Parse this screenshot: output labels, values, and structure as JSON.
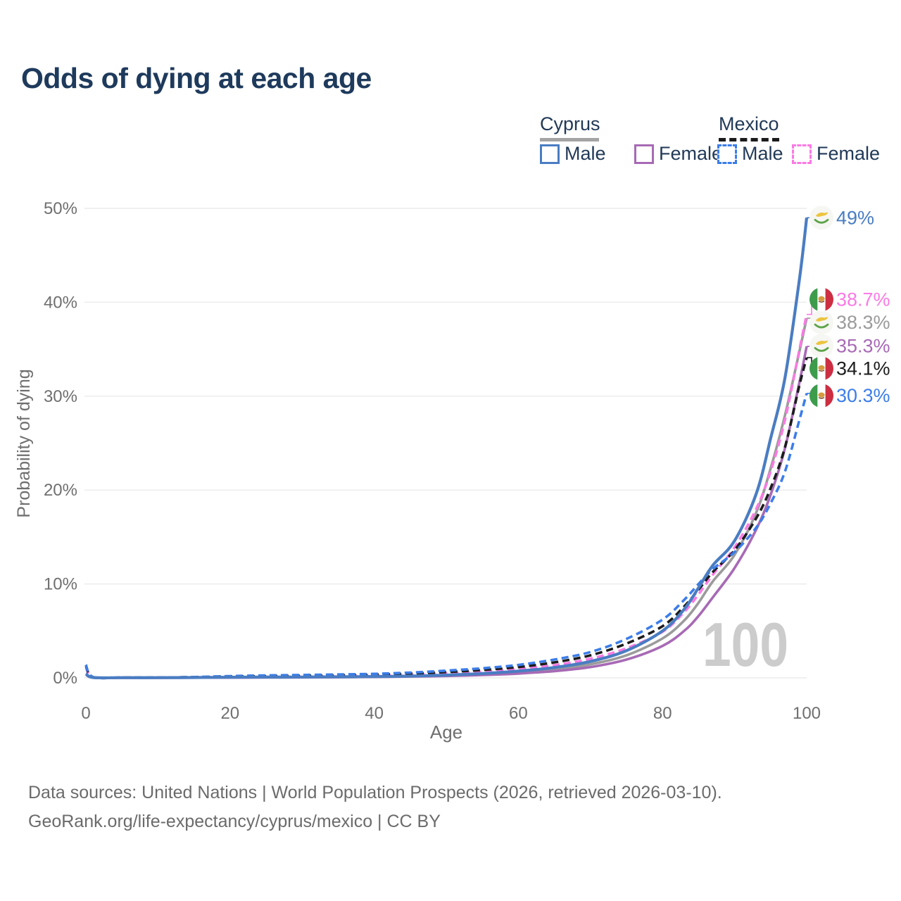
{
  "page": {
    "title": "Odds of dying at each age",
    "background": "#ffffff",
    "title_color": "#1e3a5c"
  },
  "legend": {
    "groups": [
      {
        "id": "cyprus",
        "label": "Cyprus",
        "line_style": "solid",
        "line_color": "#a4a4a4",
        "items": [
          {
            "label": "Male",
            "color": "#4a7dc2",
            "dash": false
          },
          {
            "label": "Female",
            "color": "#a76ab5",
            "dash": false
          }
        ]
      },
      {
        "id": "mexico",
        "label": "Mexico",
        "line_style": "dashed",
        "line_color": "#1b1b1b",
        "items": [
          {
            "label": "Male",
            "color": "#3c7de9",
            "dash": true
          },
          {
            "label": "Female",
            "color": "#fb7ae4",
            "dash": true
          }
        ]
      }
    ]
  },
  "chart_data": {
    "type": "line",
    "title": "Odds of dying at each age",
    "xlabel": "Age",
    "ylabel": "Probability of dying",
    "xlim": [
      0,
      100
    ],
    "ylim": [
      0,
      50
    ],
    "x_ticks": [
      0,
      20,
      40,
      60,
      80,
      100
    ],
    "y_ticks": [
      0,
      10,
      20,
      30,
      40,
      50
    ],
    "y_tick_suffix": "%",
    "grid": "horizontal",
    "grid_color": "#ececec",
    "axis_text_color": "#6f6f6f",
    "watermark": "100",
    "watermark_color": "#cccccc",
    "x": [
      0,
      1,
      5,
      10,
      15,
      20,
      25,
      30,
      35,
      40,
      45,
      50,
      55,
      60,
      65,
      70,
      75,
      80,
      83,
      85,
      87,
      90,
      93,
      95,
      97,
      99,
      100
    ],
    "series": [
      {
        "name": "Cyprus Total",
        "country": "Cyprus",
        "group": "total",
        "color": "#9b9b9b",
        "dash": false,
        "width": 3.6,
        "values": [
          0.4,
          0.035,
          0.015,
          0.015,
          0.03,
          0.05,
          0.06,
          0.07,
          0.09,
          0.12,
          0.17,
          0.25,
          0.38,
          0.59,
          0.9,
          1.45,
          2.4,
          4.2,
          6.1,
          8.0,
          10.3,
          13.1,
          17.6,
          22.3,
          28.0,
          34.8,
          38.3
        ],
        "end_label": {
          "text": "38.3%",
          "color": "#9b9b9b",
          "flag": "cyprus",
          "label_pos": 37.85
        }
      },
      {
        "name": "Cyprus Female",
        "country": "Cyprus",
        "group": "Female",
        "color": "#a76ab5",
        "dash": false,
        "width": 3.6,
        "values": [
          0.35,
          0.03,
          0.01,
          0.01,
          0.02,
          0.03,
          0.04,
          0.05,
          0.07,
          0.1,
          0.14,
          0.2,
          0.3,
          0.46,
          0.72,
          1.15,
          1.95,
          3.4,
          5.0,
          6.6,
          8.6,
          11.7,
          15.8,
          19.5,
          24.5,
          31.5,
          35.3
        ],
        "end_label": {
          "text": "35.3%",
          "color": "#a76ab5",
          "flag": "cyprus",
          "label_pos": 35.35
        }
      },
      {
        "name": "Mexico Female",
        "country": "Mexico",
        "group": "Female",
        "color": "#fb7ae4",
        "dash": true,
        "width": 3.6,
        "values": [
          1.15,
          0.07,
          0.03,
          0.03,
          0.06,
          0.09,
          0.11,
          0.14,
          0.18,
          0.24,
          0.33,
          0.47,
          0.65,
          0.92,
          1.35,
          2.05,
          3.15,
          4.9,
          7.0,
          8.9,
          11.0,
          13.9,
          18.0,
          22.0,
          27.5,
          35.0,
          38.7
        ],
        "end_label": {
          "text": "38.7%",
          "color": "#fb7ae4",
          "flag": "mexico",
          "label_pos": 40.3
        }
      },
      {
        "name": "Mexico Total",
        "country": "Mexico",
        "group": "total",
        "color": "#1c1c1c",
        "dash": true,
        "width": 3.6,
        "values": [
          1.3,
          0.08,
          0.035,
          0.035,
          0.075,
          0.14,
          0.18,
          0.22,
          0.27,
          0.34,
          0.45,
          0.62,
          0.84,
          1.15,
          1.65,
          2.4,
          3.65,
          5.5,
          7.6,
          9.4,
          11.3,
          13.6,
          17.0,
          20.2,
          24.6,
          31.2,
          34.1
        ],
        "end_label": {
          "text": "34.1%",
          "color": "#1c1c1c",
          "flag": "mexico",
          "label_pos": 32.95
        }
      },
      {
        "name": "Mexico Male",
        "country": "Mexico",
        "group": "Male",
        "color": "#3c7de9",
        "dash": true,
        "width": 3.6,
        "values": [
          1.4,
          0.09,
          0.04,
          0.04,
          0.09,
          0.19,
          0.26,
          0.31,
          0.36,
          0.43,
          0.56,
          0.77,
          1.02,
          1.38,
          1.95,
          2.75,
          4.15,
          6.2,
          8.3,
          10.0,
          11.6,
          13.4,
          16.0,
          18.6,
          22.0,
          27.5,
          30.3
        ],
        "end_label": {
          "text": "30.3%",
          "color": "#3c7de9",
          "flag": "mexico",
          "label_pos": 30.05
        }
      },
      {
        "name": "Cyprus Male",
        "country": "Cyprus",
        "group": "Male",
        "color": "#4a7dc2",
        "dash": false,
        "width": 4.2,
        "values": [
          0.45,
          0.04,
          0.02,
          0.02,
          0.04,
          0.07,
          0.08,
          0.09,
          0.11,
          0.14,
          0.19,
          0.29,
          0.46,
          0.72,
          1.1,
          1.75,
          2.9,
          5.0,
          7.3,
          9.6,
          12.0,
          14.6,
          19.6,
          25.5,
          32.0,
          42.5,
          49.0
        ],
        "end_label": {
          "text": "49%",
          "color": "#4a7dc2",
          "flag": "cyprus",
          "label_pos": 49.0
        }
      }
    ],
    "legend_position": "top-right"
  },
  "footer": {
    "line1": "Data sources: United Nations | World Population Prospects (2026, retrieved 2026-03-10).",
    "line2": "GeoRank.org/life-expectancy/cyprus/mexico | CC BY"
  }
}
